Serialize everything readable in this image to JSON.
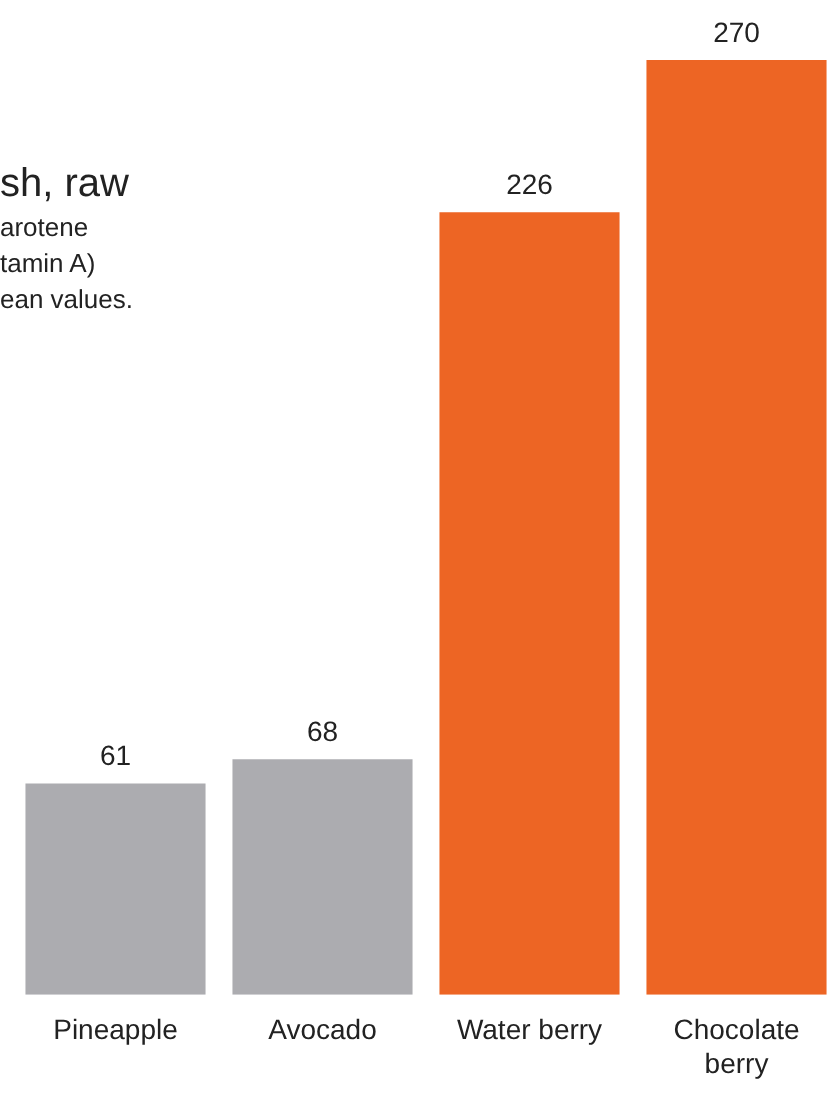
{
  "chart_data": {
    "type": "bar",
    "title": "sh, raw",
    "annotations": [
      "arotene",
      "tamin A)",
      "ean values."
    ],
    "categories": [
      "Pineapple",
      "Avocado",
      "Water berry",
      "Chocolate berry"
    ],
    "values": [
      61,
      68,
      226,
      270
    ],
    "colors": [
      "#acacb0",
      "#acacb0",
      "#ed6524",
      "#ed6524"
    ],
    "data_labels": true
  }
}
